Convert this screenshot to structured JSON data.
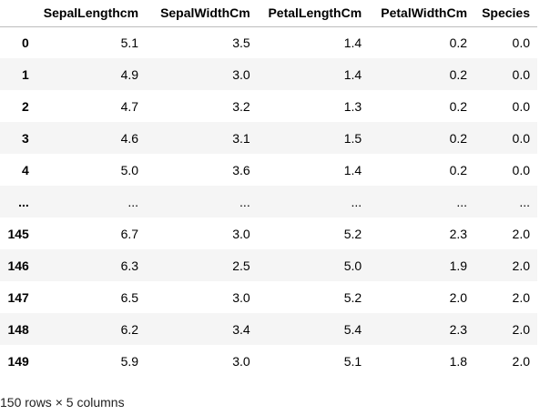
{
  "dataframe": {
    "index_header": "",
    "columns": [
      "SepalLengthcm",
      "SepalWidthCm",
      "PetalLengthCm",
      "PetalWidthCm",
      "Species"
    ],
    "rows": [
      {
        "index": "0",
        "cells": [
          "5.1",
          "3.5",
          "1.4",
          "0.2",
          "0.0"
        ]
      },
      {
        "index": "1",
        "cells": [
          "4.9",
          "3.0",
          "1.4",
          "0.2",
          "0.0"
        ]
      },
      {
        "index": "2",
        "cells": [
          "4.7",
          "3.2",
          "1.3",
          "0.2",
          "0.0"
        ]
      },
      {
        "index": "3",
        "cells": [
          "4.6",
          "3.1",
          "1.5",
          "0.2",
          "0.0"
        ]
      },
      {
        "index": "4",
        "cells": [
          "5.0",
          "3.6",
          "1.4",
          "0.2",
          "0.0"
        ]
      },
      {
        "index": "...",
        "cells": [
          "...",
          "...",
          "...",
          "...",
          "..."
        ]
      },
      {
        "index": "145",
        "cells": [
          "6.7",
          "3.0",
          "5.2",
          "2.3",
          "2.0"
        ]
      },
      {
        "index": "146",
        "cells": [
          "6.3",
          "2.5",
          "5.0",
          "1.9",
          "2.0"
        ]
      },
      {
        "index": "147",
        "cells": [
          "6.5",
          "3.0",
          "5.2",
          "2.0",
          "2.0"
        ]
      },
      {
        "index": "148",
        "cells": [
          "6.2",
          "3.4",
          "5.4",
          "2.3",
          "2.0"
        ]
      },
      {
        "index": "149",
        "cells": [
          "5.9",
          "3.0",
          "5.1",
          "1.8",
          "2.0"
        ]
      }
    ],
    "shape_text": "150 rows × 5 columns"
  },
  "colors": {
    "header_border": "#bdbdbd",
    "striped_row_background": "#f5f5f5",
    "text": "#000000"
  }
}
